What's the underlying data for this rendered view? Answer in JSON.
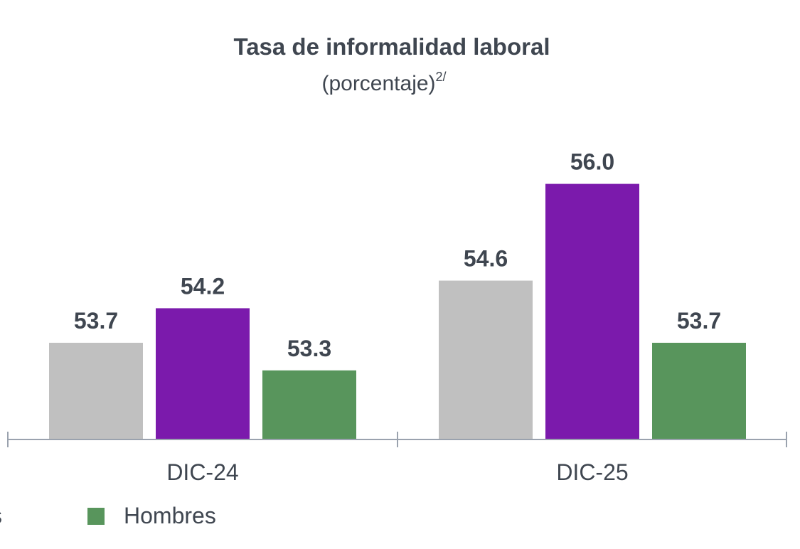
{
  "chart_data": {
    "type": "bar",
    "title": "Tasa de informalidad laboral",
    "subtitle": "(porcentaje)",
    "subtitle_note": "2/",
    "categories": [
      "DIC-24",
      "DIC-25"
    ],
    "series": [
      {
        "values": [
          53.7,
          54.6
        ],
        "color": "#c0c0c0"
      },
      {
        "values": [
          54.2,
          56.0
        ],
        "color": "#7b1aac"
      },
      {
        "name": "Hombres",
        "values": [
          53.3,
          53.7
        ],
        "color": "#58955c"
      }
    ],
    "ylim": [
      52.3,
      56.5
    ],
    "grid": false,
    "legend": {
      "placement": "bottom",
      "visible_entries": [
        "Hombres"
      ],
      "partial_text": "s"
    },
    "axis_color": "#9aa2ae"
  }
}
